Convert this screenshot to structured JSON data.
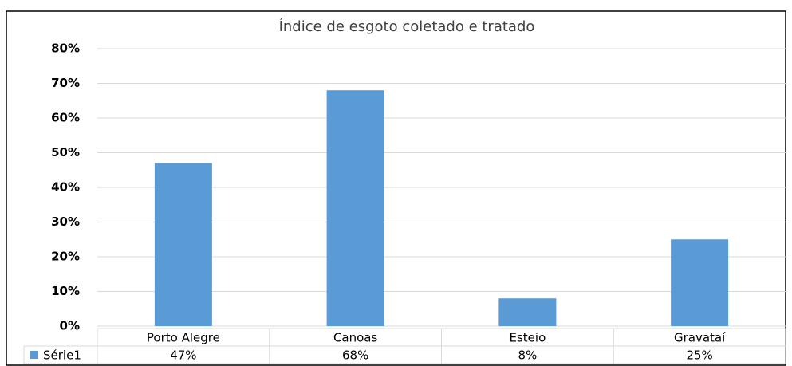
{
  "chart_data": {
    "type": "bar",
    "title": "Índice de esgoto coletado e tratado",
    "categories": [
      "Porto Alegre",
      "Canoas",
      "Esteio",
      "Gravataí"
    ],
    "series": [
      {
        "name": "Série1",
        "color": "#5b9bd5",
        "values": [
          47,
          68,
          8,
          25
        ],
        "value_labels": [
          "47%",
          "68%",
          "8%",
          "25%"
        ]
      }
    ],
    "ylim": [
      0,
      80
    ],
    "yticks": [
      {
        "value": 0,
        "label": "0%"
      },
      {
        "value": 10,
        "label": "10%"
      },
      {
        "value": 20,
        "label": "20%"
      },
      {
        "value": 30,
        "label": "30%"
      },
      {
        "value": 40,
        "label": "40%"
      },
      {
        "value": 50,
        "label": "50%"
      },
      {
        "value": 60,
        "label": "60%"
      },
      {
        "value": 70,
        "label": "70%"
      },
      {
        "value": 80,
        "label": "80%"
      }
    ],
    "grid": true
  }
}
